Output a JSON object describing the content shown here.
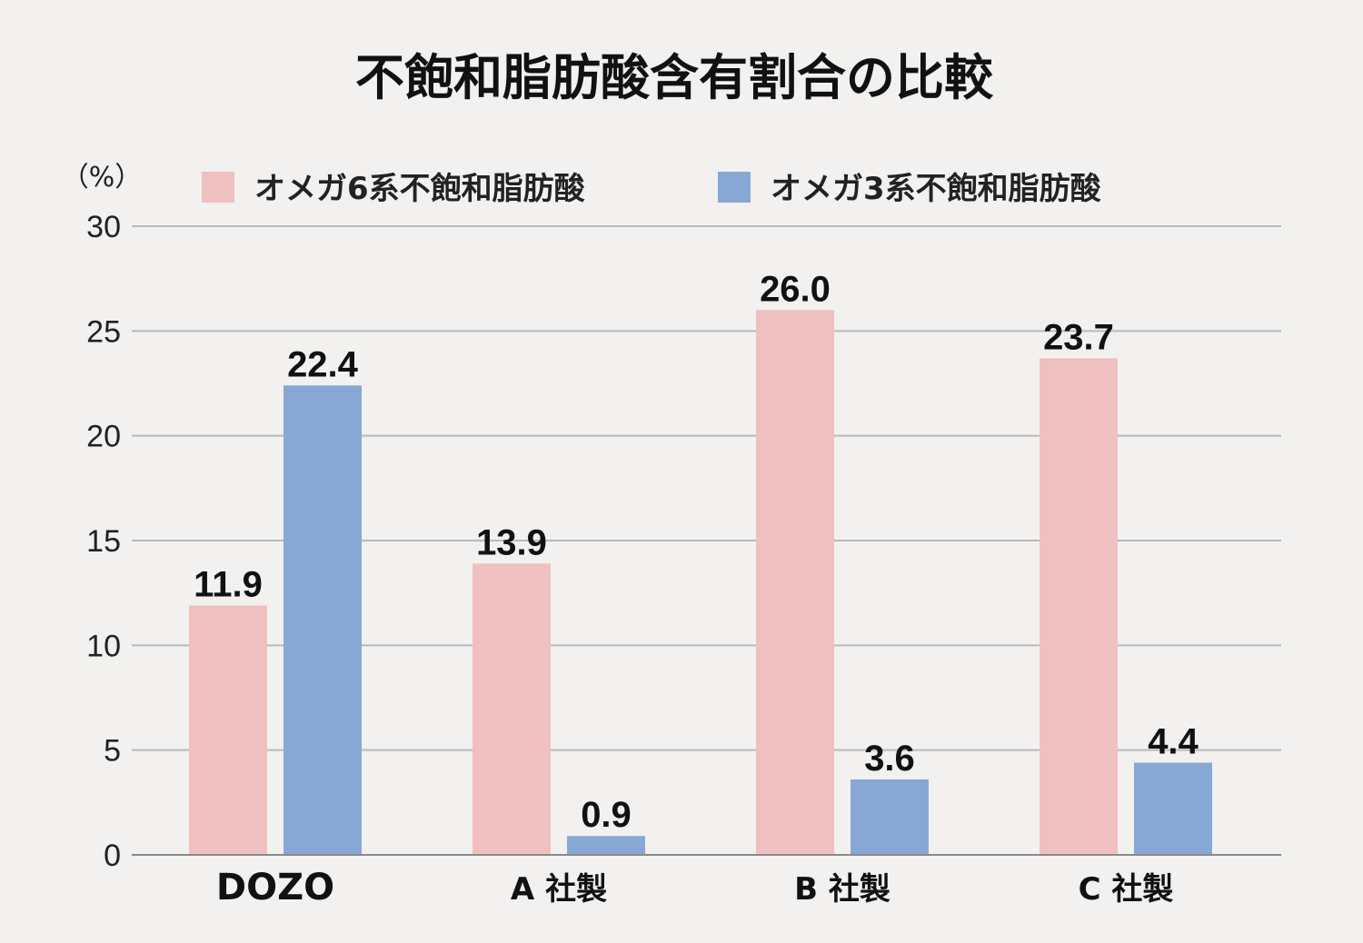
{
  "chart_data": {
    "type": "bar",
    "title": "不飽和脂肪酸含有割合の比較",
    "ylabel": "（%）",
    "xlabel": "",
    "ylim": [
      0,
      30
    ],
    "yticks": [
      0,
      5,
      10,
      15,
      20,
      25,
      30
    ],
    "ytick_labels": [
      "0",
      "5",
      "10",
      "15",
      "20",
      "25",
      "30"
    ],
    "grid": true,
    "legend_position": "top",
    "categories": [
      "DOZO",
      "A 社製",
      "B 社製",
      "C 社製"
    ],
    "series": [
      {
        "name": "オメガ6系不飽和脂肪酸",
        "color": "#efc0c0",
        "values": [
          11.9,
          13.9,
          26.0,
          23.7
        ],
        "labels": [
          "11.9",
          "13.9",
          "26.0",
          "23.7"
        ]
      },
      {
        "name": "オメガ3系不飽和脂肪酸",
        "color": "#87a8d4",
        "values": [
          22.4,
          0.9,
          3.6,
          4.4
        ],
        "labels": [
          "22.4",
          "0.9",
          "3.6",
          "4.4"
        ]
      }
    ]
  }
}
